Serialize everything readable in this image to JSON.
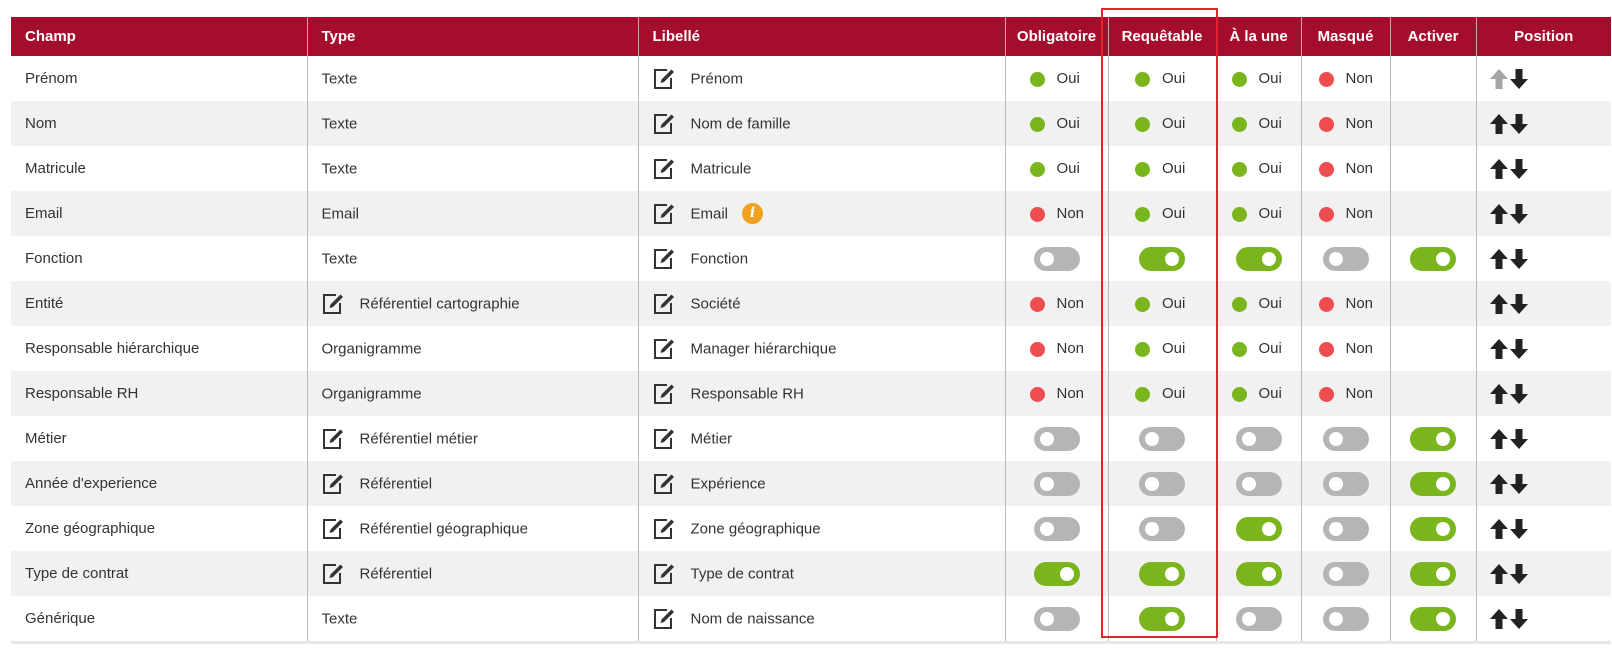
{
  "table": {
    "headers": {
      "champ": "Champ",
      "type": "Type",
      "libelle": "Libellé",
      "obligatoire": "Obligatoire",
      "requetable": "Requêtable",
      "une": "À la une",
      "masque": "Masqué",
      "activer": "Activer",
      "position": "Position"
    },
    "rows": [
      {
        "champ": "Prénom",
        "type": "Texte",
        "type_editable": false,
        "libelle": "Prénom",
        "info": false,
        "obligatoire": {
          "kind": "status",
          "on": true,
          "label": "Oui"
        },
        "requetable": {
          "kind": "status",
          "on": true,
          "label": "Oui"
        },
        "une": {
          "kind": "status",
          "on": true,
          "label": "Oui"
        },
        "masque": {
          "kind": "status",
          "on": false,
          "label": "Non"
        },
        "activer": {
          "kind": "none"
        },
        "up_enabled": false
      },
      {
        "champ": "Nom",
        "type": "Texte",
        "type_editable": false,
        "libelle": "Nom de famille",
        "info": false,
        "obligatoire": {
          "kind": "status",
          "on": true,
          "label": "Oui"
        },
        "requetable": {
          "kind": "status",
          "on": true,
          "label": "Oui"
        },
        "une": {
          "kind": "status",
          "on": true,
          "label": "Oui"
        },
        "masque": {
          "kind": "status",
          "on": false,
          "label": "Non"
        },
        "activer": {
          "kind": "none"
        },
        "up_enabled": true
      },
      {
        "champ": "Matricule",
        "type": "Texte",
        "type_editable": false,
        "libelle": "Matricule",
        "info": false,
        "obligatoire": {
          "kind": "status",
          "on": true,
          "label": "Oui"
        },
        "requetable": {
          "kind": "status",
          "on": true,
          "label": "Oui"
        },
        "une": {
          "kind": "status",
          "on": true,
          "label": "Oui"
        },
        "masque": {
          "kind": "status",
          "on": false,
          "label": "Non"
        },
        "activer": {
          "kind": "none"
        },
        "up_enabled": true
      },
      {
        "champ": "Email",
        "type": "Email",
        "type_editable": false,
        "libelle": "Email",
        "info": true,
        "obligatoire": {
          "kind": "status",
          "on": false,
          "label": "Non"
        },
        "requetable": {
          "kind": "status",
          "on": true,
          "label": "Oui"
        },
        "une": {
          "kind": "status",
          "on": true,
          "label": "Oui"
        },
        "masque": {
          "kind": "status",
          "on": false,
          "label": "Non"
        },
        "activer": {
          "kind": "none"
        },
        "up_enabled": true
      },
      {
        "champ": "Fonction",
        "type": "Texte",
        "type_editable": false,
        "libelle": "Fonction",
        "info": false,
        "obligatoire": {
          "kind": "toggle",
          "on": false
        },
        "requetable": {
          "kind": "toggle",
          "on": true
        },
        "une": {
          "kind": "toggle",
          "on": true
        },
        "masque": {
          "kind": "toggle",
          "on": false
        },
        "activer": {
          "kind": "toggle",
          "on": true
        },
        "up_enabled": true
      },
      {
        "champ": "Entité",
        "type": "Référentiel cartographie",
        "type_editable": true,
        "libelle": "Société",
        "info": false,
        "obligatoire": {
          "kind": "status",
          "on": false,
          "label": "Non"
        },
        "requetable": {
          "kind": "status",
          "on": true,
          "label": "Oui"
        },
        "une": {
          "kind": "status",
          "on": true,
          "label": "Oui"
        },
        "masque": {
          "kind": "status",
          "on": false,
          "label": "Non"
        },
        "activer": {
          "kind": "none"
        },
        "up_enabled": true
      },
      {
        "champ": "Responsable hiérarchique",
        "type": "Organigramme",
        "type_editable": false,
        "libelle": "Manager hiérarchique",
        "info": false,
        "obligatoire": {
          "kind": "status",
          "on": false,
          "label": "Non"
        },
        "requetable": {
          "kind": "status",
          "on": true,
          "label": "Oui"
        },
        "une": {
          "kind": "status",
          "on": true,
          "label": "Oui"
        },
        "masque": {
          "kind": "status",
          "on": false,
          "label": "Non"
        },
        "activer": {
          "kind": "none"
        },
        "up_enabled": true
      },
      {
        "champ": "Responsable RH",
        "type": "Organigramme",
        "type_editable": false,
        "libelle": "Responsable RH",
        "info": false,
        "obligatoire": {
          "kind": "status",
          "on": false,
          "label": "Non"
        },
        "requetable": {
          "kind": "status",
          "on": true,
          "label": "Oui"
        },
        "une": {
          "kind": "status",
          "on": true,
          "label": "Oui"
        },
        "masque": {
          "kind": "status",
          "on": false,
          "label": "Non"
        },
        "activer": {
          "kind": "none"
        },
        "up_enabled": true
      },
      {
        "champ": "Métier",
        "type": "Référentiel métier",
        "type_editable": true,
        "libelle": "Métier",
        "info": false,
        "obligatoire": {
          "kind": "toggle",
          "on": false
        },
        "requetable": {
          "kind": "toggle",
          "on": false
        },
        "une": {
          "kind": "toggle",
          "on": false
        },
        "masque": {
          "kind": "toggle",
          "on": false
        },
        "activer": {
          "kind": "toggle",
          "on": true
        },
        "up_enabled": true
      },
      {
        "champ": "Année d'experience",
        "type": "Référentiel",
        "type_editable": true,
        "libelle": "Expérience",
        "info": false,
        "obligatoire": {
          "kind": "toggle",
          "on": false
        },
        "requetable": {
          "kind": "toggle",
          "on": false
        },
        "une": {
          "kind": "toggle",
          "on": false
        },
        "masque": {
          "kind": "toggle",
          "on": false
        },
        "activer": {
          "kind": "toggle",
          "on": true
        },
        "up_enabled": true
      },
      {
        "champ": "Zone géographique",
        "type": "Référentiel géographique",
        "type_editable": true,
        "libelle": "Zone géographique",
        "info": false,
        "obligatoire": {
          "kind": "toggle",
          "on": false
        },
        "requetable": {
          "kind": "toggle",
          "on": false
        },
        "une": {
          "kind": "toggle",
          "on": true
        },
        "masque": {
          "kind": "toggle",
          "on": false
        },
        "activer": {
          "kind": "toggle",
          "on": true
        },
        "up_enabled": true
      },
      {
        "champ": "Type de contrat",
        "type": "Référentiel",
        "type_editable": true,
        "libelle": "Type de contrat",
        "info": false,
        "obligatoire": {
          "kind": "toggle",
          "on": true
        },
        "requetable": {
          "kind": "toggle",
          "on": true
        },
        "une": {
          "kind": "toggle",
          "on": true
        },
        "masque": {
          "kind": "toggle",
          "on": false
        },
        "activer": {
          "kind": "toggle",
          "on": true
        },
        "up_enabled": true
      },
      {
        "champ": "Générique",
        "type": "Texte",
        "type_editable": false,
        "libelle": "Nom de naissance",
        "info": false,
        "obligatoire": {
          "kind": "toggle",
          "on": false
        },
        "requetable": {
          "kind": "toggle",
          "on": true
        },
        "une": {
          "kind": "toggle",
          "on": false
        },
        "masque": {
          "kind": "toggle",
          "on": false
        },
        "activer": {
          "kind": "toggle",
          "on": true
        },
        "up_enabled": true
      }
    ]
  },
  "icons": {
    "edit": "edit-icon",
    "info": "info-icon",
    "up": "arrow-up-icon",
    "down": "arrow-down-icon"
  },
  "colors": {
    "header_bg": "#a50d2c",
    "on": "#7ab51d",
    "off": "#ee4d50",
    "toggle_off": "#b5b5b5",
    "info": "#f2a11f",
    "highlight": "#e3232b"
  }
}
